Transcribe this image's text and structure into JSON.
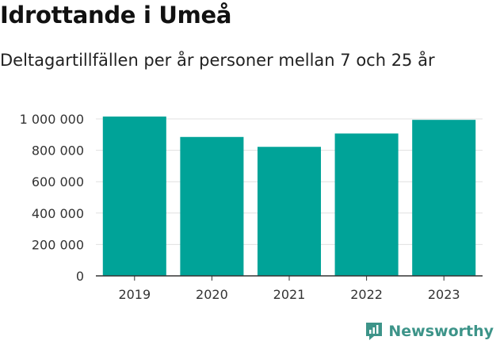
{
  "title": "Idrottande i Umeå",
  "subtitle": "Deltagartillfällen per år personer mellan 7 och 25 år",
  "brand": "Newsworthy",
  "colors": {
    "bar": "#00A398",
    "grid": "#e0e0e0",
    "axis": "#333333",
    "brand": "#3d9489"
  },
  "chart_data": {
    "type": "bar",
    "categories": [
      "2019",
      "2020",
      "2021",
      "2022",
      "2023"
    ],
    "values": [
      1015000,
      885000,
      822000,
      907000,
      994000
    ],
    "title": "Idrottande i Umeå",
    "subtitle": "Deltagartillfällen per år personer mellan 7 och 25 år",
    "ylim": [
      0,
      1000000
    ],
    "yticks": [
      0,
      200000,
      400000,
      600000,
      800000,
      1000000
    ],
    "ytick_labels": [
      "0",
      "200 000",
      "400 000",
      "600 000",
      "800 000",
      "1 000 000"
    ],
    "grid": true
  }
}
